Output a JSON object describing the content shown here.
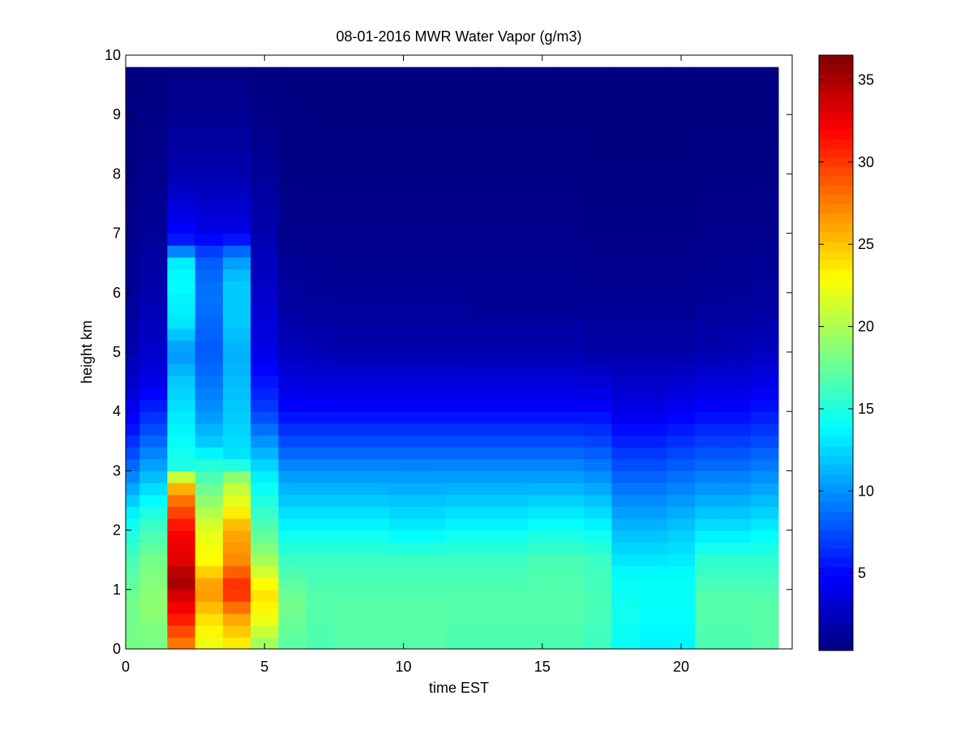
{
  "chart_data": {
    "type": "heatmap",
    "title": "08-01-2016 MWR Water Vapor (g/m3)",
    "xlabel": "time EST",
    "ylabel": "height km",
    "xlim": [
      0,
      24
    ],
    "ylim": [
      0,
      10
    ],
    "x_ticks": [
      0,
      5,
      10,
      15,
      20
    ],
    "y_ticks": [
      0,
      1,
      2,
      3,
      4,
      5,
      6,
      7,
      8,
      9,
      10
    ],
    "colorbar": {
      "colormap": "jet",
      "range": [
        0.3,
        36.5
      ],
      "ticks": [
        5,
        10,
        15,
        20,
        25,
        30,
        35
      ]
    },
    "x": [
      0,
      1,
      2,
      3,
      4,
      5,
      6,
      7,
      8,
      9,
      10,
      11,
      12,
      13,
      14,
      15,
      16,
      17,
      18,
      19,
      20,
      21,
      22,
      23
    ],
    "heights_km": [
      0.1,
      0.3,
      0.5,
      0.7,
      0.9,
      1.1,
      1.3,
      1.5,
      1.7,
      1.9,
      2.1,
      2.3,
      2.5,
      2.7,
      2.9,
      3.1,
      3.3,
      3.5,
      3.7,
      3.9,
      4.1,
      4.3,
      4.5,
      4.7,
      4.9,
      5.1,
      5.3,
      5.5,
      5.7,
      5.9,
      6.1,
      6.3,
      6.5,
      6.7,
      6.9,
      7.1,
      7.3,
      7.5,
      7.7,
      7.9,
      8.1,
      8.3,
      8.5,
      8.7,
      8.9,
      9.1,
      9.3,
      9.5,
      9.7
    ],
    "profiles": {
      "t0": [
        [
          0,
          18
        ],
        [
          0.8,
          18
        ],
        [
          1.5,
          16.5
        ],
        [
          2.2,
          14
        ],
        [
          3,
          9
        ],
        [
          3.8,
          5
        ],
        [
          4.5,
          3
        ],
        [
          5,
          2
        ],
        [
          6,
          1.2
        ],
        [
          7,
          0.8
        ],
        [
          8,
          0.5
        ],
        [
          9,
          0.4
        ],
        [
          9.75,
          0.3
        ]
      ],
      "t1": [
        [
          0,
          18
        ],
        [
          0.8,
          19
        ],
        [
          1.5,
          18
        ],
        [
          2.2,
          15.5
        ],
        [
          3,
          11
        ],
        [
          3.8,
          7
        ],
        [
          4.5,
          4
        ],
        [
          5,
          3
        ],
        [
          6,
          2
        ],
        [
          7,
          1.2
        ],
        [
          8,
          0.8
        ],
        [
          9,
          0.5
        ],
        [
          9.75,
          0.4
        ]
      ],
      "t2": [
        [
          0,
          27
        ],
        [
          0.5,
          31
        ],
        [
          1.0,
          34
        ],
        [
          1.15,
          35.5
        ],
        [
          1.5,
          33
        ],
        [
          2.0,
          32
        ],
        [
          2.5,
          28
        ],
        [
          2.85,
          24
        ],
        [
          3.0,
          15
        ],
        [
          3.5,
          14
        ],
        [
          4.0,
          13
        ],
        [
          4.5,
          12
        ],
        [
          5,
          10
        ],
        [
          5.5,
          13
        ],
        [
          6.2,
          14
        ],
        [
          6.6,
          13
        ],
        [
          6.8,
          6
        ],
        [
          7.3,
          4
        ],
        [
          8,
          2
        ],
        [
          9,
          1
        ],
        [
          9.75,
          0.5
        ]
      ],
      "t3": [
        [
          0,
          22
        ],
        [
          0.5,
          24
        ],
        [
          1.0,
          27
        ],
        [
          1.5,
          23
        ],
        [
          2.0,
          22
        ],
        [
          2.5,
          19
        ],
        [
          3.0,
          16
        ],
        [
          3.5,
          12
        ],
        [
          4.0,
          10
        ],
        [
          5,
          8
        ],
        [
          6,
          9
        ],
        [
          6.6,
          8
        ],
        [
          7,
          4
        ],
        [
          8,
          2
        ],
        [
          9,
          1
        ],
        [
          9.75,
          0.5
        ]
      ],
      "t4": [
        [
          0,
          23
        ],
        [
          0.5,
          26
        ],
        [
          1.0,
          31
        ],
        [
          1.5,
          27
        ],
        [
          2.0,
          26
        ],
        [
          2.5,
          22
        ],
        [
          2.85,
          20
        ],
        [
          3.2,
          13
        ],
        [
          4,
          12
        ],
        [
          5,
          11
        ],
        [
          5.5,
          12
        ],
        [
          6.2,
          12
        ],
        [
          6.6,
          10
        ],
        [
          7,
          4
        ],
        [
          8,
          2
        ],
        [
          9,
          1
        ],
        [
          9.75,
          0.5
        ]
      ],
      "t5": [
        [
          0,
          19
        ],
        [
          0.6,
          23
        ],
        [
          1.0,
          24
        ],
        [
          1.2,
          22
        ],
        [
          1.6,
          19
        ],
        [
          2.0,
          17
        ],
        [
          3,
          13
        ],
        [
          4,
          7
        ],
        [
          5,
          4
        ],
        [
          6,
          3
        ],
        [
          7,
          2
        ],
        [
          8,
          1.2
        ],
        [
          9,
          0.6
        ],
        [
          9.75,
          0.4
        ]
      ],
      "t6": [
        [
          0,
          17
        ],
        [
          0.8,
          18
        ],
        [
          1.5,
          16
        ],
        [
          2.0,
          14
        ],
        [
          3,
          10
        ],
        [
          4,
          5
        ],
        [
          5,
          2.5
        ],
        [
          5.8,
          1.5
        ],
        [
          7,
          0.8
        ],
        [
          8,
          0.5
        ],
        [
          9,
          0.4
        ],
        [
          9.75,
          0.3
        ]
      ],
      "t7": [
        [
          0,
          16.5
        ],
        [
          0.8,
          17
        ],
        [
          1.5,
          16
        ],
        [
          2.0,
          14
        ],
        [
          3,
          10
        ],
        [
          4,
          5
        ],
        [
          5,
          2.2
        ],
        [
          5.8,
          1.3
        ],
        [
          7,
          0.7
        ],
        [
          8,
          0.5
        ],
        [
          9,
          0.3
        ],
        [
          9.75,
          0.3
        ]
      ],
      "t8": [
        [
          0,
          17
        ],
        [
          0.8,
          17
        ],
        [
          1.5,
          16
        ],
        [
          2.0,
          14
        ],
        [
          3,
          10
        ],
        [
          4,
          5
        ],
        [
          5,
          2
        ],
        [
          5.8,
          1.2
        ],
        [
          7,
          0.7
        ],
        [
          8,
          0.5
        ],
        [
          9,
          0.3
        ],
        [
          9.75,
          0.3
        ]
      ],
      "t9": [
        [
          0,
          17
        ],
        [
          0.8,
          17
        ],
        [
          1.5,
          16
        ],
        [
          2.0,
          14
        ],
        [
          3,
          10
        ],
        [
          4,
          5
        ],
        [
          5,
          2
        ],
        [
          5.8,
          1.2
        ],
        [
          7,
          0.7
        ],
        [
          8,
          0.5
        ],
        [
          9,
          0.3
        ],
        [
          9.75,
          0.3
        ]
      ],
      "t10": [
        [
          0,
          17
        ],
        [
          0.8,
          17
        ],
        [
          1.5,
          16
        ],
        [
          2.0,
          13.5
        ],
        [
          3,
          10
        ],
        [
          4,
          5
        ],
        [
          5,
          2
        ],
        [
          5.8,
          1.2
        ],
        [
          7,
          0.7
        ],
        [
          8,
          0.5
        ],
        [
          9,
          0.3
        ],
        [
          9.75,
          0.3
        ]
      ],
      "t11": [
        [
          0,
          17
        ],
        [
          0.8,
          17
        ],
        [
          1.5,
          16
        ],
        [
          2.0,
          13.5
        ],
        [
          3,
          10
        ],
        [
          4,
          5
        ],
        [
          5,
          2
        ],
        [
          5.8,
          1.2
        ],
        [
          7,
          0.7
        ],
        [
          8,
          0.5
        ],
        [
          9,
          0.3
        ],
        [
          9.75,
          0.3
        ]
      ],
      "t12": [
        [
          0,
          16.5
        ],
        [
          0.8,
          17
        ],
        [
          1.5,
          16
        ],
        [
          2.0,
          14
        ],
        [
          3,
          10
        ],
        [
          4,
          5
        ],
        [
          5,
          2
        ],
        [
          5.8,
          1.2
        ],
        [
          7,
          0.7
        ],
        [
          8,
          0.5
        ],
        [
          9,
          0.3
        ],
        [
          9.75,
          0.3
        ]
      ],
      "t13": [
        [
          0,
          16.5
        ],
        [
          0.8,
          17
        ],
        [
          1.5,
          16
        ],
        [
          2.0,
          14
        ],
        [
          3,
          10
        ],
        [
          4,
          5
        ],
        [
          5,
          2
        ],
        [
          5.8,
          1.1
        ],
        [
          7,
          0.7
        ],
        [
          8,
          0.5
        ],
        [
          9,
          0.3
        ],
        [
          9.75,
          0.3
        ]
      ],
      "t14": [
        [
          0,
          16.5
        ],
        [
          0.8,
          17
        ],
        [
          1.5,
          16
        ],
        [
          2.0,
          14
        ],
        [
          3,
          10
        ],
        [
          4,
          5
        ],
        [
          5,
          2
        ],
        [
          5.8,
          1.1
        ],
        [
          7,
          0.7
        ],
        [
          8,
          0.5
        ],
        [
          9,
          0.3
        ],
        [
          9.75,
          0.3
        ]
      ],
      "t15": [
        [
          0,
          16.5
        ],
        [
          0.8,
          17
        ],
        [
          1.5,
          16.5
        ],
        [
          2.0,
          14.5
        ],
        [
          3,
          10
        ],
        [
          4,
          5
        ],
        [
          5,
          2
        ],
        [
          5.8,
          1.1
        ],
        [
          7,
          0.7
        ],
        [
          8,
          0.5
        ],
        [
          9,
          0.3
        ],
        [
          9.75,
          0.3
        ]
      ],
      "t16": [
        [
          0,
          16.5
        ],
        [
          0.8,
          17
        ],
        [
          1.5,
          16.5
        ],
        [
          2.0,
          14.5
        ],
        [
          3,
          10
        ],
        [
          4,
          5
        ],
        [
          5,
          2
        ],
        [
          5.8,
          1.1
        ],
        [
          7,
          0.7
        ],
        [
          8,
          0.5
        ],
        [
          9,
          0.3
        ],
        [
          9.75,
          0.3
        ]
      ],
      "t17": [
        [
          0,
          16
        ],
        [
          0.8,
          16.5
        ],
        [
          1.5,
          16
        ],
        [
          2.0,
          14
        ],
        [
          3,
          9.5
        ],
        [
          4,
          5
        ],
        [
          5,
          1.8
        ],
        [
          5.8,
          1
        ],
        [
          7,
          0.6
        ],
        [
          8,
          0.4
        ],
        [
          9,
          0.3
        ],
        [
          9.75,
          0.3
        ]
      ],
      "t18": [
        [
          0,
          14
        ],
        [
          0.6,
          14.5
        ],
        [
          1.2,
          14
        ],
        [
          2.0,
          11.5
        ],
        [
          3,
          8
        ],
        [
          4,
          4
        ],
        [
          5,
          1.8
        ],
        [
          5.8,
          1
        ],
        [
          7,
          0.6
        ],
        [
          8,
          0.4
        ],
        [
          9,
          0.3
        ],
        [
          9.75,
          0.3
        ]
      ],
      "t19": [
        [
          0,
          13.5
        ],
        [
          0.6,
          14
        ],
        [
          1.2,
          14
        ],
        [
          2.0,
          11.5
        ],
        [
          3,
          8
        ],
        [
          4,
          4
        ],
        [
          5,
          1.8
        ],
        [
          5.8,
          1
        ],
        [
          7,
          0.6
        ],
        [
          8,
          0.4
        ],
        [
          9,
          0.3
        ],
        [
          9.75,
          0.3
        ]
      ],
      "t20": [
        [
          0,
          13.5
        ],
        [
          0.6,
          14
        ],
        [
          1.2,
          14
        ],
        [
          2.0,
          12
        ],
        [
          3,
          8.5
        ],
        [
          4,
          4.5
        ],
        [
          5,
          1.8
        ],
        [
          5.8,
          1
        ],
        [
          7,
          0.6
        ],
        [
          8,
          0.4
        ],
        [
          9,
          0.3
        ],
        [
          9.75,
          0.3
        ]
      ],
      "t21": [
        [
          0,
          16.5
        ],
        [
          0.8,
          17
        ],
        [
          1.5,
          15.5
        ],
        [
          2.0,
          13
        ],
        [
          3,
          9
        ],
        [
          4,
          5
        ],
        [
          5,
          2
        ],
        [
          5.8,
          1.2
        ],
        [
          7,
          0.7
        ],
        [
          8,
          0.5
        ],
        [
          9,
          0.3
        ],
        [
          9.75,
          0.3
        ]
      ],
      "t22": [
        [
          0,
          16.5
        ],
        [
          0.8,
          17
        ],
        [
          1.5,
          15.5
        ],
        [
          2.0,
          13
        ],
        [
          3,
          9
        ],
        [
          4,
          5
        ],
        [
          5,
          2.2
        ],
        [
          5.8,
          1.3
        ],
        [
          7,
          0.7
        ],
        [
          8,
          0.5
        ],
        [
          9,
          0.3
        ],
        [
          9.75,
          0.3
        ]
      ],
      "t23": [
        [
          0,
          17
        ],
        [
          0.8,
          17
        ],
        [
          1.5,
          15.5
        ],
        [
          2.0,
          13.5
        ],
        [
          3,
          9.5
        ],
        [
          4,
          5.5
        ],
        [
          5,
          2.5
        ],
        [
          5.8,
          1.5
        ],
        [
          7,
          0.8
        ],
        [
          8,
          0.5
        ],
        [
          9,
          0.3
        ],
        [
          9.75,
          0.3
        ]
      ]
    }
  }
}
